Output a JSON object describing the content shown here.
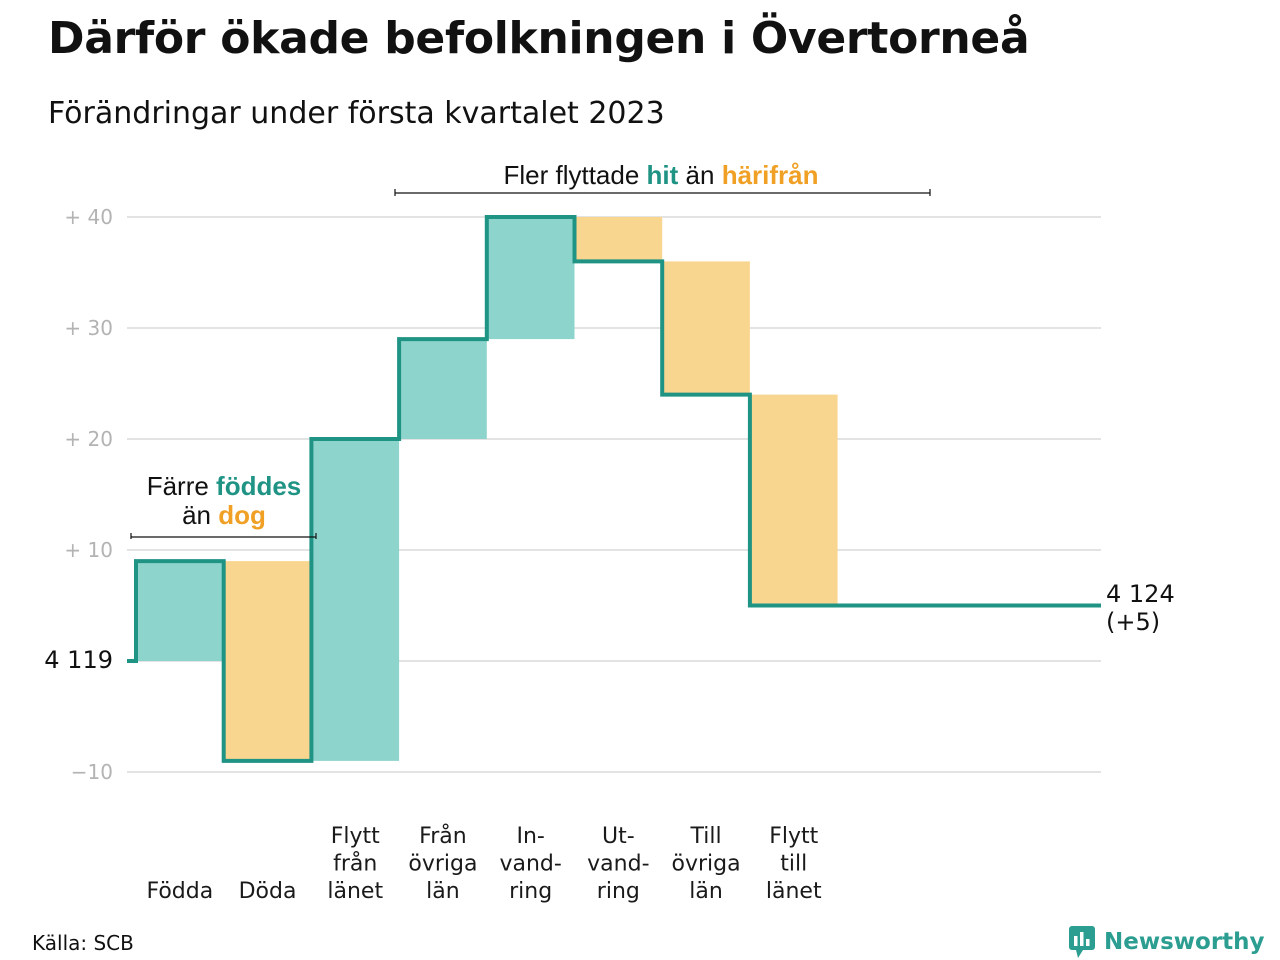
{
  "title": "Därför ökade befolkningen i Övertorneå",
  "subtitle": "Förändringar under första kvartalet 2023",
  "source": "Källa: SCB",
  "brand": "Newsworthy",
  "colors": {
    "line": "#1f9384",
    "increase": "#8dd5cc",
    "decrease": "#f9d68f",
    "highlight_teal": "#1f9384",
    "highlight_orange": "#f0a024",
    "grid": "#e3e3e3",
    "tick": "#b3b3b3"
  },
  "annotations": {
    "births": {
      "line1": [
        {
          "text": "Färre ",
          "style": "plain"
        },
        {
          "text": "föddes",
          "style": "teal"
        }
      ],
      "line2": [
        {
          "text": "än ",
          "style": "plain"
        },
        {
          "text": "dog",
          "style": "orange"
        }
      ]
    },
    "moves": {
      "line1": [
        {
          "text": "Fler flyttade ",
          "style": "plain"
        },
        {
          "text": "hit",
          "style": "teal"
        },
        {
          "text": " än ",
          "style": "plain"
        },
        {
          "text": "härifrån",
          "style": "orange"
        }
      ]
    }
  },
  "chart_data": {
    "type": "waterfall",
    "title": "Därför ökade befolkningen i Övertorneå",
    "subtitle": "Förändringar under första kvartalet 2023",
    "start": {
      "label": "4 119",
      "value": 4119
    },
    "end": {
      "label": "4 124",
      "change_label": "(+5)",
      "value": 4124
    },
    "y_ticks": [
      {
        "value": 40,
        "label": "+ 40"
      },
      {
        "value": 30,
        "label": "+ 30"
      },
      {
        "value": 20,
        "label": "+ 20"
      },
      {
        "value": 10,
        "label": "+ 10"
      },
      {
        "value": 0,
        "label": ""
      },
      {
        "value": -10,
        "label": "−10"
      }
    ],
    "ylim": [
      -10,
      40
    ],
    "grid": true,
    "steps": [
      {
        "name": "births",
        "label": [
          "",
          "",
          "Födda"
        ],
        "change": 9,
        "direction": "increase"
      },
      {
        "name": "deaths",
        "label": [
          "",
          "",
          "Döda"
        ],
        "change": -18,
        "direction": "decrease"
      },
      {
        "name": "moved-from-county",
        "label": [
          "Flytt",
          "från",
          "länet"
        ],
        "change": 29,
        "direction": "increase"
      },
      {
        "name": "from-other-counties",
        "label": [
          "Från",
          "övriga",
          "län"
        ],
        "change": 9,
        "direction": "increase"
      },
      {
        "name": "immigration",
        "label": [
          "In-",
          "vand-",
          "ring"
        ],
        "change": 11,
        "direction": "increase"
      },
      {
        "name": "emigration",
        "label": [
          "Ut-",
          "vand-",
          "ring"
        ],
        "change": -4,
        "direction": "decrease"
      },
      {
        "name": "to-other-counties",
        "label": [
          "Till",
          "övriga",
          "län"
        ],
        "change": -12,
        "direction": "decrease"
      },
      {
        "name": "moved-to-county",
        "label": [
          "Flytt",
          "till",
          "länet"
        ],
        "change": -19,
        "direction": "decrease"
      }
    ]
  }
}
